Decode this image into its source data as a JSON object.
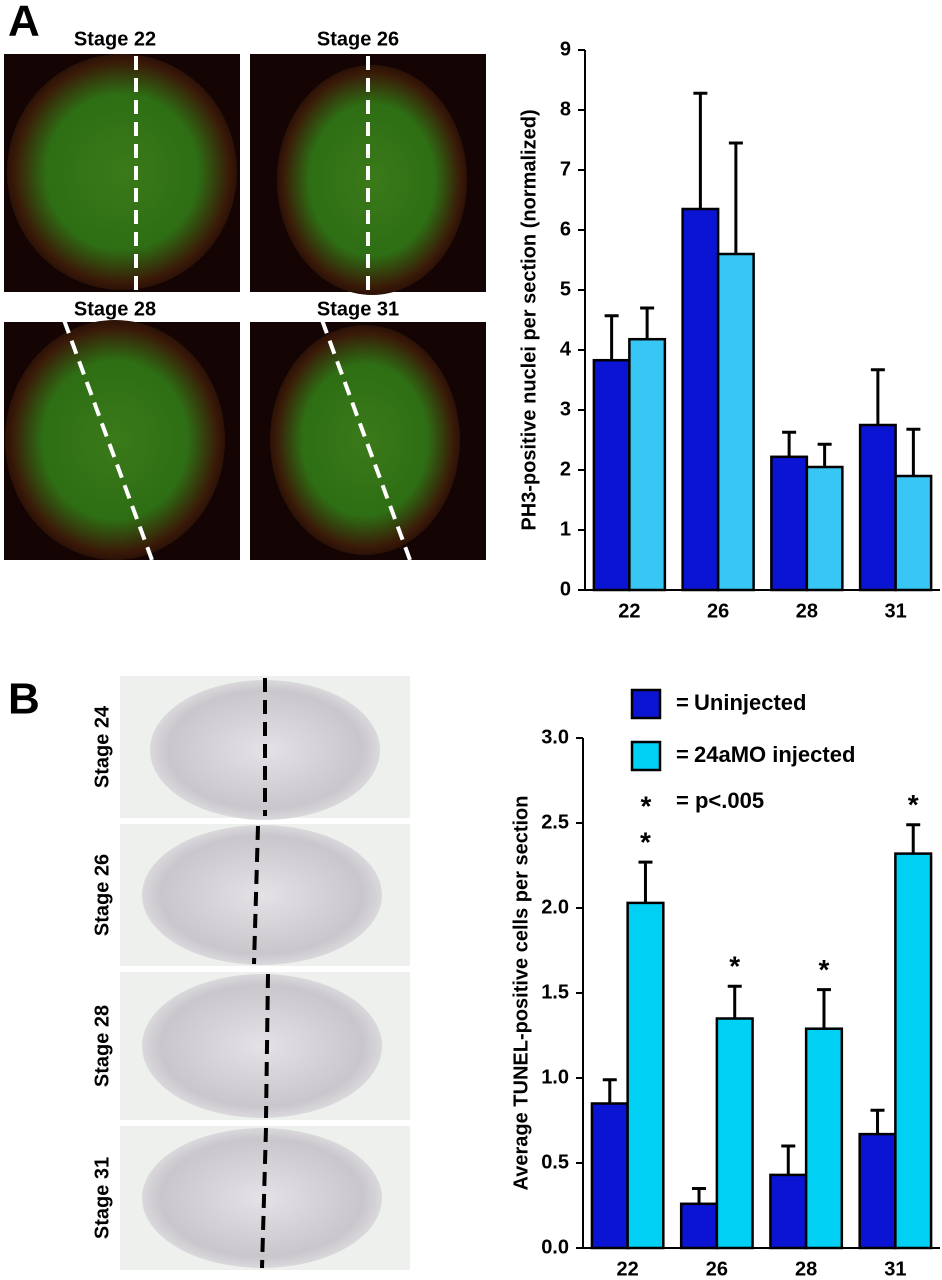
{
  "panel_a": {
    "label": "A",
    "images": [
      {
        "label": "Stage 22"
      },
      {
        "label": "Stage 26"
      },
      {
        "label": "Stage 28"
      },
      {
        "label": "Stage 31"
      }
    ]
  },
  "panel_b": {
    "label": "B",
    "images": [
      {
        "label": "Stage 24"
      },
      {
        "label": "Stage 26"
      },
      {
        "label": "Stage 28"
      },
      {
        "label": "Stage 31"
      }
    ]
  },
  "chart_data": [
    {
      "type": "bar",
      "ylabel": "PH3-positive nuclei per section (normalized)",
      "categories": [
        "22",
        "26",
        "28",
        "31"
      ],
      "series": [
        {
          "color": "#0a14d2",
          "values": [
            3.83,
            6.35,
            2.22,
            2.75
          ],
          "errors": [
            0.74,
            1.93,
            0.41,
            0.92
          ]
        },
        {
          "color": "#38c6f4",
          "values": [
            4.18,
            5.6,
            2.05,
            1.9
          ],
          "errors": [
            0.52,
            1.85,
            0.38,
            0.78
          ]
        }
      ],
      "ylim": [
        0,
        9
      ],
      "yticks": [
        0,
        1,
        2,
        3,
        4,
        5,
        6,
        7,
        8,
        9
      ]
    },
    {
      "type": "bar",
      "ylabel": "Average TUNEL-positive cells per section",
      "categories": [
        "22",
        "26",
        "28",
        "31"
      ],
      "series": [
        {
          "name": "Uninjected",
          "color": "#0a14d2",
          "values": [
            0.85,
            0.26,
            0.43,
            0.67
          ],
          "errors": [
            0.14,
            0.09,
            0.17,
            0.14
          ]
        },
        {
          "name": "24aMO injected",
          "color": "#00d0f4",
          "values": [
            2.03,
            1.35,
            1.29,
            2.32
          ],
          "errors": [
            0.24,
            0.19,
            0.23,
            0.17
          ],
          "markers": [
            "*",
            "*",
            "*",
            "*"
          ]
        }
      ],
      "legend_equals": "=",
      "significance_symbol": "*",
      "significance_label": "= p<.005",
      "ylim": [
        0,
        3
      ],
      "yticks": [
        {
          "value": 0,
          "label": "0.0"
        },
        0.5,
        {
          "value": 1,
          "label": "1.0"
        },
        1.5,
        {
          "value": 2,
          "label": "2.0"
        },
        2.5,
        {
          "value": 3,
          "label": "3.0"
        }
      ]
    }
  ]
}
